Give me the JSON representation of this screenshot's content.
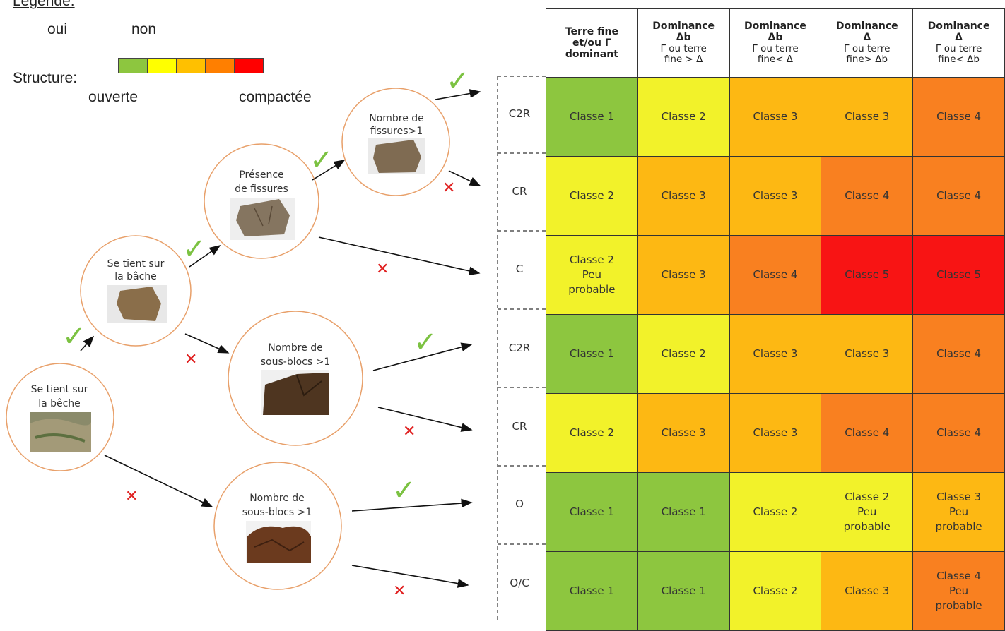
{
  "legend": {
    "title": "Légende:",
    "yes": "oui",
    "no": "non",
    "structure_label": "Structure:",
    "open": "ouverte",
    "compacted": "compactée",
    "scale_colors": [
      "#8dc63f",
      "#ffff00",
      "#ffc000",
      "#ff7f00",
      "#ff0000"
    ]
  },
  "nodes": {
    "root": [
      "Se tient sur",
      "la bêche"
    ],
    "bache": [
      "Se tient sur",
      "la bâche"
    ],
    "fissures": [
      "Présence",
      "de fissures"
    ],
    "nb_fissures": [
      "Nombre de",
      "fissures>1"
    ],
    "sous_blocs_1": [
      "Nombre de",
      "sous-blocs >1"
    ],
    "sous_blocs_2": [
      "Nombre de",
      "sous-blocs >1"
    ]
  },
  "headers": [
    {
      "main": "Terre fine\net/ou Γ\ndominant",
      "sub": ""
    },
    {
      "main": "Dominance\nΔb",
      "sub": "Γ ou terre\nfine > Δ"
    },
    {
      "main": "Dominance\nΔb",
      "sub": "Γ ou terre\nfine< Δ"
    },
    {
      "main": "Dominance\nΔ",
      "sub": "Γ ou terre\nfine> Δb"
    },
    {
      "main": "Dominance\nΔ",
      "sub": "Γ ou terre\nfine< Δb"
    }
  ],
  "rows": [
    {
      "label": "C2R",
      "cells": [
        "Classe 1",
        "Classe 2",
        "Classe 3",
        "Classe 3",
        "Classe 4"
      ],
      "levels": [
        1,
        2,
        3,
        3,
        4
      ]
    },
    {
      "label": "CR",
      "cells": [
        "Classe 2",
        "Classe 3",
        "Classe 3",
        "Classe 4",
        "Classe 4"
      ],
      "levels": [
        2,
        3,
        3,
        4,
        4
      ]
    },
    {
      "label": "C",
      "cells": [
        "Classe 2\nPeu\nprobable",
        "Classe 3",
        "Classe 4",
        "Classe 5",
        "Classe 5"
      ],
      "levels": [
        2,
        3,
        4,
        5,
        5
      ]
    },
    {
      "label": "C2R",
      "cells": [
        "Classe 1",
        "Classe 2",
        "Classe 3",
        "Classe 3",
        "Classe 4"
      ],
      "levels": [
        1,
        2,
        3,
        3,
        4
      ]
    },
    {
      "label": "CR",
      "cells": [
        "Classe 2",
        "Classe 3",
        "Classe 3",
        "Classe 4",
        "Classe 4"
      ],
      "levels": [
        2,
        3,
        3,
        4,
        4
      ]
    },
    {
      "label": "O",
      "cells": [
        "Classe 1",
        "Classe 1",
        "Classe 2",
        "Classe 2\nPeu\nprobable",
        "Classe 3\nPeu\nprobable"
      ],
      "levels": [
        1,
        1,
        2,
        2,
        3
      ]
    },
    {
      "label": "O/C",
      "cells": [
        "Classe 1",
        "Classe 1",
        "Classe 2",
        "Classe 3",
        "Classe 4\nPeu\nprobable"
      ],
      "levels": [
        1,
        1,
        2,
        3,
        4
      ]
    }
  ],
  "level_colors": {
    "1": "#8dc63f",
    "2": "#f2f22a",
    "3": "#fdb813",
    "4": "#f98020",
    "5": "#f81414"
  },
  "marks": {
    "check": "✓",
    "cross": "✕"
  }
}
